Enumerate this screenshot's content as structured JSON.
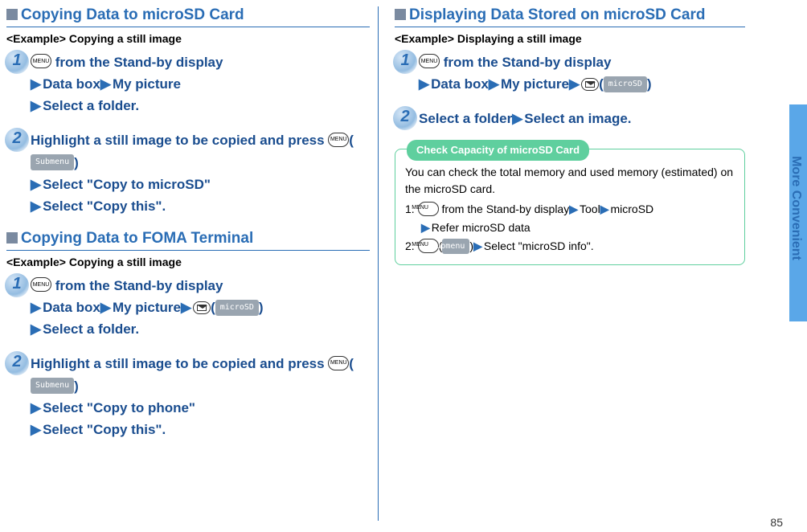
{
  "left": {
    "section1": {
      "title": "Copying Data to microSD Card",
      "example": "<Example> Copying a still image",
      "step1": {
        "num": "1",
        "l1_suffix": " from the Stand-by display",
        "l2a": "Data box",
        "l2b": "My picture",
        "l3": "Select a folder."
      },
      "step2": {
        "num": "2",
        "l1": "Highlight a still image to be copied and press ",
        "submenu": "Submenu",
        "l2": "Select \"Copy to microSD\"",
        "l3": "Select \"Copy this\"."
      }
    },
    "section2": {
      "title": "Copying Data to FOMA Terminal",
      "example": "<Example> Copying a still image",
      "step1": {
        "num": "1",
        "l1_suffix": " from the Stand-by display",
        "l2a": "Data box",
        "l2b": "My picture",
        "microsd": "microSD",
        "l3": "Select a folder."
      },
      "step2": {
        "num": "2",
        "l1": "Highlight a still image to be copied and press ",
        "submenu": "Submenu",
        "l2": "Select \"Copy to phone\"",
        "l3": "Select \"Copy this\"."
      }
    }
  },
  "right": {
    "section1": {
      "title": "Displaying Data Stored on microSD Card",
      "example": "<Example> Displaying a still image",
      "step1": {
        "num": "1",
        "l1_suffix": " from the Stand-by display",
        "l2a": "Data box",
        "l2b": "My picture",
        "microsd": "microSD"
      },
      "step2": {
        "num": "2",
        "l1a": "Select a folder",
        "l1b": "Select an image."
      }
    },
    "callout": {
      "title": "Check Capacity of microSD Card",
      "body": "You can check the total memory and used memory (estimated) on the microSD card.",
      "li1_pre": "1. ",
      "li1_mid": " from the Stand-by display",
      "li1_tool": "Tool",
      "li1_microsd": "microSD",
      "li1_sub": "Refer microSD data",
      "li2_pre": "2. ",
      "li2_submenu": "Submenu",
      "li2_suffix": "Select \"microSD info\"."
    }
  },
  "sidetab": "More Convenient",
  "pagenum": "85",
  "menuLabel": "MENU"
}
